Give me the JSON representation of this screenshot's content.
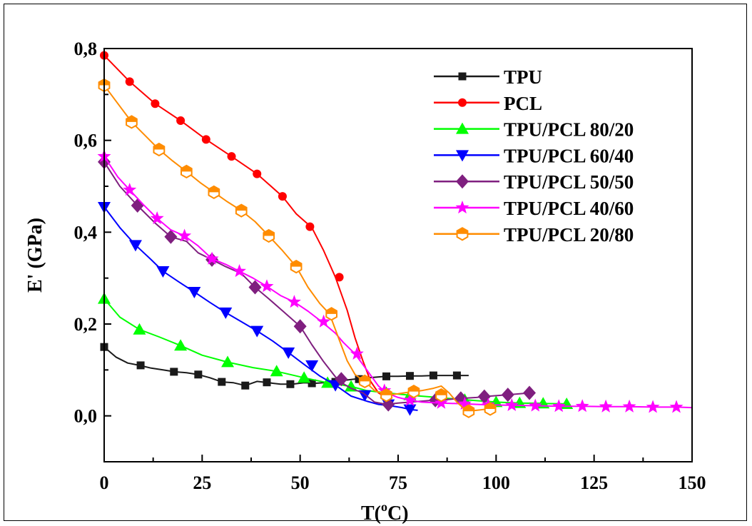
{
  "chart_data": {
    "type": "line",
    "title": "",
    "xlabel": "T(",
    "xlabel_sup": "o",
    "xlabel_suffix": "C)",
    "ylabel": "E' (GPa)",
    "xlim": [
      0,
      150
    ],
    "ylim": [
      -0.1,
      0.8
    ],
    "xticks": [
      0,
      25,
      50,
      75,
      100,
      125,
      150
    ],
    "xtick_labels": [
      "0",
      "25",
      "50",
      "75",
      "100",
      "125",
      "150"
    ],
    "yticks": [
      0.0,
      0.2,
      0.4,
      0.6,
      0.8
    ],
    "ytick_labels": [
      "0,0",
      "0,2",
      "0,4",
      "0,6",
      "0,8"
    ],
    "grid": false,
    "legend_position": "top-right",
    "series": [
      {
        "name": "TPU",
        "color": "#1a1a1a",
        "marker": "square",
        "x": [
          0,
          3,
          6,
          9,
          12,
          15,
          18,
          21,
          24,
          27,
          30,
          33,
          36,
          39,
          42,
          45,
          48,
          51,
          54,
          57,
          60,
          63,
          66,
          69,
          72,
          75,
          78,
          81,
          84,
          87,
          90,
          93
        ],
        "y": [
          0.15,
          0.128,
          0.115,
          0.11,
          0.104,
          0.1,
          0.096,
          0.094,
          0.09,
          0.083,
          0.074,
          0.072,
          0.066,
          0.075,
          0.072,
          0.069,
          0.069,
          0.072,
          0.071,
          0.073,
          0.076,
          0.079,
          0.082,
          0.084,
          0.086,
          0.086,
          0.087,
          0.087,
          0.088,
          0.088,
          0.088,
          0.088
        ],
        "marker_x": [
          0,
          9.3,
          17.8,
          24,
          30,
          36,
          41.5,
          47.5,
          53,
          59,
          65,
          72,
          78,
          84,
          90
        ],
        "marker_y": [
          0.15,
          0.11,
          0.096,
          0.09,
          0.074,
          0.066,
          0.073,
          0.069,
          0.071,
          0.074,
          0.08,
          0.086,
          0.087,
          0.088,
          0.088
        ]
      },
      {
        "name": "PCL",
        "color": "#ff0000",
        "marker": "circle",
        "x": [
          0,
          6.5,
          13,
          19.5,
          26,
          32.5,
          39,
          45.5,
          49,
          53,
          56,
          59,
          62,
          64,
          66,
          68,
          70,
          72
        ],
        "y": [
          0.785,
          0.728,
          0.68,
          0.643,
          0.602,
          0.565,
          0.527,
          0.478,
          0.44,
          0.41,
          0.36,
          0.302,
          0.23,
          0.17,
          0.12,
          0.075,
          0.05,
          0.04
        ],
        "marker_x": [
          0,
          6.5,
          13,
          19.5,
          26,
          32.5,
          39,
          45.5,
          52.5,
          60
        ],
        "marker_y": [
          0.785,
          0.728,
          0.68,
          0.643,
          0.602,
          0.565,
          0.527,
          0.478,
          0.412,
          0.302
        ]
      },
      {
        "name": "TPU/PCL 80/20",
        "color": "#00ff00",
        "marker": "triangle-up",
        "x": [
          0,
          4,
          9,
          14,
          19.5,
          25,
          31.5,
          38,
          44,
          51,
          57,
          63,
          67,
          72,
          78,
          85,
          92,
          100,
          106,
          112,
          118
        ],
        "y": [
          0.255,
          0.215,
          0.188,
          0.172,
          0.153,
          0.132,
          0.117,
          0.105,
          0.097,
          0.083,
          0.072,
          0.064,
          0.055,
          0.05,
          0.045,
          0.04,
          0.035,
          0.03,
          0.028,
          0.027,
          0.026
        ],
        "marker_x": [
          0,
          9,
          19.5,
          31.5,
          44,
          51,
          57,
          63,
          72,
          78,
          85,
          92,
          100,
          106,
          112,
          118
        ],
        "marker_y": [
          0.255,
          0.188,
          0.153,
          0.117,
          0.097,
          0.083,
          0.072,
          0.064,
          0.05,
          0.045,
          0.04,
          0.035,
          0.03,
          0.028,
          0.027,
          0.026
        ]
      },
      {
        "name": "TPU/PCL 60/40",
        "color": "#0000ff",
        "marker": "triangle-down",
        "x": [
          0,
          4,
          8,
          12,
          15,
          19,
          23,
          27,
          31,
          35,
          39,
          43,
          47,
          51,
          55,
          59,
          63,
          67,
          70,
          73,
          76,
          78,
          80
        ],
        "y": [
          0.455,
          0.41,
          0.372,
          0.34,
          0.315,
          0.292,
          0.27,
          0.247,
          0.225,
          0.205,
          0.185,
          0.163,
          0.138,
          0.112,
          0.087,
          0.067,
          0.043,
          0.032,
          0.025,
          0.022,
          0.018,
          0.014,
          0.012
        ],
        "marker_x": [
          0,
          8,
          15,
          23,
          31,
          39,
          47,
          53,
          59,
          66.5,
          72.5,
          78
        ],
        "marker_y": [
          0.455,
          0.372,
          0.315,
          0.27,
          0.225,
          0.185,
          0.138,
          0.11,
          0.067,
          0.045,
          0.025,
          0.014
        ]
      },
      {
        "name": "TPU/PCL 50/50",
        "color": "#7f1f7f",
        "marker": "diamond",
        "x": [
          0,
          4,
          8.5,
          13,
          17,
          21,
          24,
          27.5,
          31,
          35,
          38.5,
          42,
          46,
          50,
          53,
          56,
          59,
          61,
          63,
          66,
          69,
          72,
          75,
          78,
          81,
          84,
          87,
          91,
          95,
          97,
          100,
          103,
          106,
          108.5
        ],
        "y": [
          0.553,
          0.5,
          0.458,
          0.42,
          0.39,
          0.38,
          0.355,
          0.34,
          0.325,
          0.31,
          0.28,
          0.255,
          0.225,
          0.195,
          0.155,
          0.118,
          0.085,
          0.07,
          0.06,
          0.05,
          0.03,
          0.025,
          0.028,
          0.03,
          0.032,
          0.034,
          0.035,
          0.038,
          0.04,
          0.042,
          0.044,
          0.046,
          0.048,
          0.05
        ],
        "marker_x": [
          0,
          8.5,
          17,
          27.5,
          38.5,
          50,
          60.5,
          72.5,
          84.5,
          91,
          97,
          103,
          108.5
        ],
        "marker_y": [
          0.553,
          0.458,
          0.39,
          0.34,
          0.28,
          0.195,
          0.08,
          0.025,
          0.034,
          0.038,
          0.042,
          0.046,
          0.05
        ]
      },
      {
        "name": "TPU/PCL 40/60",
        "color": "#ff00ff",
        "marker": "star",
        "x": [
          0,
          3.5,
          6.5,
          10,
          13.5,
          17,
          20.5,
          24,
          27.5,
          31,
          34.5,
          38,
          41.5,
          45,
          48.5,
          52,
          55.5,
          59,
          61,
          64,
          67,
          70,
          72,
          75,
          78,
          81,
          86,
          92,
          98,
          104,
          110,
          116,
          122,
          128,
          134,
          140,
          146,
          150
        ],
        "y": [
          0.565,
          0.52,
          0.492,
          0.46,
          0.43,
          0.405,
          0.392,
          0.37,
          0.342,
          0.33,
          0.315,
          0.3,
          0.282,
          0.262,
          0.248,
          0.228,
          0.205,
          0.18,
          0.16,
          0.135,
          0.1,
          0.065,
          0.05,
          0.04,
          0.034,
          0.03,
          0.028,
          0.026,
          0.024,
          0.023,
          0.022,
          0.021,
          0.021,
          0.02,
          0.02,
          0.019,
          0.019,
          0.018
        ],
        "marker_x": [
          0,
          6.5,
          13.5,
          20.5,
          27.5,
          34.5,
          41.5,
          48.5,
          56,
          64.5,
          71.5,
          78,
          86,
          92,
          98,
          104,
          110,
          116,
          122,
          128,
          134,
          140,
          146
        ],
        "marker_y": [
          0.565,
          0.492,
          0.43,
          0.392,
          0.342,
          0.315,
          0.282,
          0.248,
          0.205,
          0.135,
          0.055,
          0.034,
          0.028,
          0.026,
          0.024,
          0.023,
          0.022,
          0.021,
          0.021,
          0.02,
          0.02,
          0.019,
          0.019
        ]
      },
      {
        "name": "TPU/PCL 20/80",
        "color": "#ff8c00",
        "marker": "hexagon-half",
        "x": [
          0,
          3.5,
          7,
          10.5,
          14,
          17.5,
          21,
          24.5,
          28,
          31.5,
          35,
          38.5,
          42,
          45.5,
          49,
          52,
          55,
          57.5,
          60,
          62,
          64,
          66.5,
          69,
          72,
          75,
          78,
          81,
          84,
          86,
          88,
          90,
          92.5,
          95,
          98,
          100
        ],
        "y": [
          0.72,
          0.68,
          0.64,
          0.61,
          0.58,
          0.555,
          0.532,
          0.508,
          0.487,
          0.466,
          0.447,
          0.423,
          0.392,
          0.36,
          0.325,
          0.28,
          0.245,
          0.222,
          0.165,
          0.12,
          0.09,
          0.075,
          0.055,
          0.045,
          0.048,
          0.052,
          0.055,
          0.06,
          0.065,
          0.05,
          0.03,
          0.01,
          0.012,
          0.015,
          0.018
        ],
        "marker_x": [
          0,
          7,
          14,
          21,
          28,
          35,
          42,
          49,
          58,
          66.5,
          72,
          79,
          86,
          93,
          98.5
        ],
        "marker_y": [
          0.72,
          0.64,
          0.58,
          0.532,
          0.487,
          0.447,
          0.392,
          0.325,
          0.222,
          0.075,
          0.045,
          0.053,
          0.045,
          0.01,
          0.015
        ]
      }
    ]
  }
}
